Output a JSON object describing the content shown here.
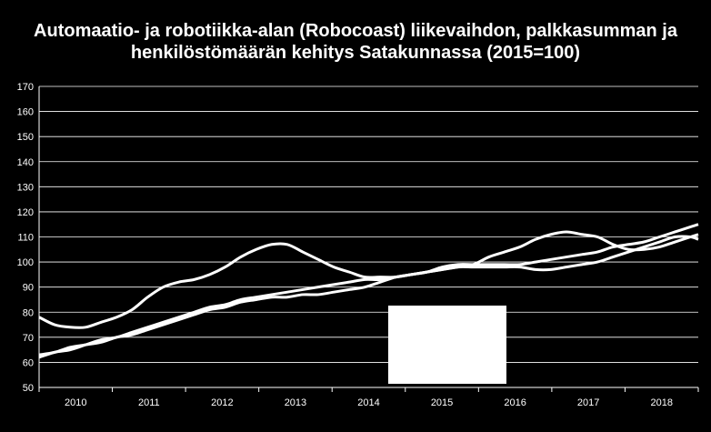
{
  "chart_data": {
    "type": "line",
    "title_lines": [
      "Automaatio- ja robotiikka-alan (Robocoast) liikevaihdon, palkkasumman ja",
      "henkilöstömäärän kehitys Satakunnassa (2015=100)"
    ],
    "xlabel": "",
    "ylabel": "",
    "ylim": [
      50,
      170
    ],
    "yticks": [
      50,
      60,
      70,
      80,
      90,
      100,
      110,
      120,
      130,
      140,
      150,
      160,
      170
    ],
    "xlim": [
      2009.5,
      2018.0
    ],
    "xticks": [
      "2010",
      "2011",
      "2012",
      "2013",
      "2014",
      "2015",
      "2016",
      "2017",
      "2018"
    ],
    "grid": true,
    "legend": "none",
    "series": [
      {
        "color": "#ffffff",
        "x": [
          2009.5,
          2009.7,
          2009.9,
          2010.1,
          2010.3,
          2010.5,
          2010.7,
          2010.9,
          2011.1,
          2011.3,
          2011.5,
          2011.7,
          2011.9,
          2012.1,
          2012.3,
          2012.5,
          2012.7,
          2012.9,
          2013.1,
          2013.3,
          2013.5,
          2013.7,
          2013.9,
          2014.1,
          2014.3,
          2014.5,
          2014.7,
          2014.9,
          2015.1,
          2015.3,
          2015.5,
          2015.7,
          2015.9,
          2016.1,
          2016.3,
          2016.5,
          2016.7,
          2016.9,
          2017.1,
          2017.3,
          2017.5,
          2017.7,
          2017.9,
          2018.0
        ],
        "values": [
          78,
          75,
          74,
          74,
          76,
          78,
          81,
          86,
          90,
          92,
          93,
          95,
          98,
          102,
          105,
          107,
          107,
          104,
          101,
          98,
          96,
          94,
          94,
          94,
          95,
          96,
          97,
          98,
          99,
          102,
          104,
          106,
          109,
          111,
          112,
          111,
          110,
          107,
          105,
          105,
          106,
          108,
          110,
          111
        ]
      },
      {
        "color": "#ffffff",
        "x": [
          2009.5,
          2009.7,
          2009.9,
          2010.1,
          2010.3,
          2010.5,
          2010.7,
          2010.9,
          2011.1,
          2011.3,
          2011.5,
          2011.7,
          2011.9,
          2012.1,
          2012.3,
          2012.5,
          2012.7,
          2012.9,
          2013.1,
          2013.3,
          2013.5,
          2013.7,
          2013.9,
          2014.1,
          2014.3,
          2014.5,
          2014.7,
          2014.9,
          2015.1,
          2015.3,
          2015.5,
          2015.7,
          2015.9,
          2016.1,
          2016.3,
          2016.5,
          2016.7,
          2016.9,
          2017.1,
          2017.3,
          2017.5,
          2017.7,
          2017.9,
          2018.0
        ],
        "values": [
          62,
          64,
          65,
          67,
          69,
          70,
          72,
          74,
          76,
          78,
          80,
          82,
          83,
          85,
          86,
          87,
          88,
          89,
          90,
          91,
          92,
          93,
          93,
          94,
          95,
          96,
          97,
          98,
          98,
          98,
          98,
          98,
          97,
          97,
          98,
          99,
          100,
          102,
          104,
          106,
          108,
          110,
          110,
          109
        ]
      },
      {
        "color": "#ffffff",
        "x": [
          2009.5,
          2009.7,
          2009.9,
          2010.1,
          2010.3,
          2010.5,
          2010.7,
          2010.9,
          2011.1,
          2011.3,
          2011.5,
          2011.7,
          2011.9,
          2012.1,
          2012.3,
          2012.5,
          2012.7,
          2012.9,
          2013.1,
          2013.3,
          2013.5,
          2013.7,
          2013.9,
          2014.1,
          2014.3,
          2014.5,
          2014.7,
          2014.9,
          2015.1,
          2015.3,
          2015.5,
          2015.7,
          2015.9,
          2016.1,
          2016.3,
          2016.5,
          2016.7,
          2016.9,
          2017.1,
          2017.3,
          2017.5,
          2017.7,
          2017.9,
          2018.0
        ],
        "values": [
          63,
          64,
          66,
          67,
          68,
          70,
          71,
          73,
          75,
          77,
          79,
          81,
          82,
          84,
          85,
          86,
          86,
          87,
          87,
          88,
          89,
          90,
          92,
          94,
          95,
          96,
          98,
          99,
          99,
          99,
          99,
          99,
          100,
          101,
          102,
          103,
          104,
          106,
          107,
          108,
          110,
          112,
          114,
          115
        ]
      }
    ]
  }
}
